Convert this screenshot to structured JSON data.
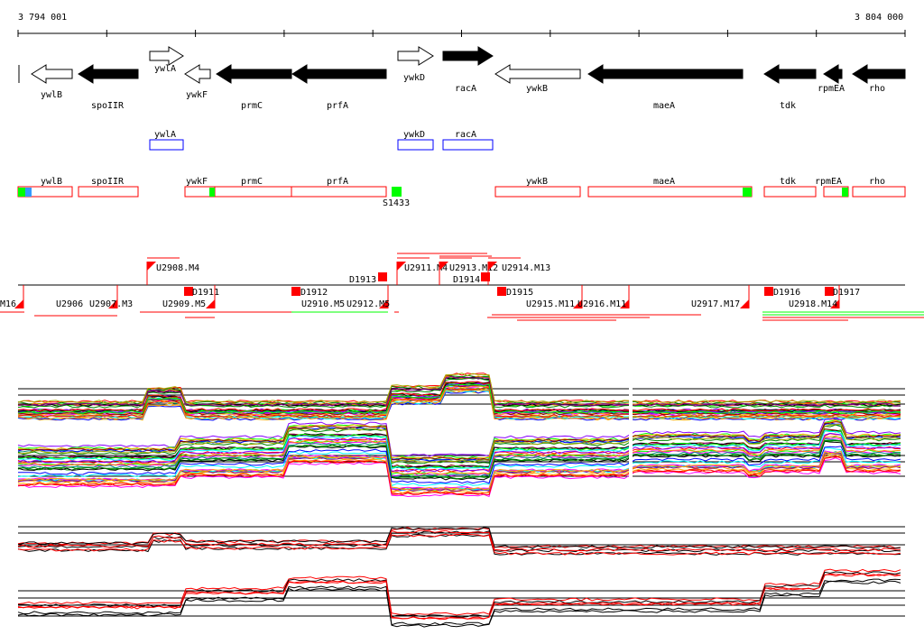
{
  "axis": {
    "start": "3 794 001",
    "end": "3 804 000"
  },
  "genes": [
    "ywlB",
    "spoIIR",
    "ywlA",
    "ywkF",
    "prmC",
    "prfA",
    "ywkD",
    "racA",
    "ywkB",
    "maeA",
    "tdk",
    "rpmEA",
    "rho"
  ],
  "blue_track": [
    "ywlA",
    "ywkD",
    "racA"
  ],
  "red_track": [
    "ywlB",
    "spoIIR",
    "ywkF",
    "prmC",
    "prfA",
    "ywkB",
    "maeA",
    "tdk",
    "rpmEA",
    "rho"
  ],
  "site_label": "S1433",
  "features": [
    "M16",
    "U2906",
    "U2907.M3",
    "U2908.M4",
    "D1911",
    "U2909.M5",
    "D1912",
    "U2910.M5",
    "U2912.M5",
    "D1913",
    "U2911.M4",
    "U2913.M12",
    "U2914.M13",
    "D1914",
    "D1915",
    "U2915.M11",
    "U2916.M11",
    "U2917.M17",
    "D1916",
    "U2918.M14",
    "D1917"
  ],
  "colors": {
    "accent": "#ff0000",
    "green": "#00ff00",
    "blue": "#0000ff"
  }
}
